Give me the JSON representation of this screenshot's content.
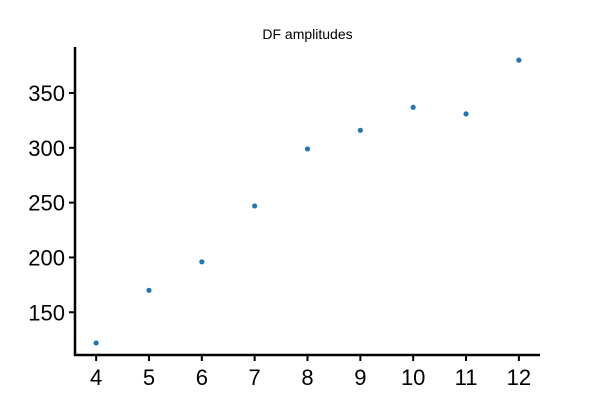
{
  "chart_data": {
    "type": "scatter",
    "title": "DF amplitudes",
    "xlabel": "",
    "ylabel": "",
    "x": [
      4,
      5,
      6,
      7,
      8,
      9,
      10,
      11,
      12
    ],
    "y": [
      122,
      170,
      196,
      247,
      299,
      316,
      337,
      331,
      380
    ],
    "xlim": [
      3.6,
      12.4
    ],
    "ylim": [
      111,
      392
    ],
    "xticks": [
      4,
      5,
      6,
      7,
      8,
      9,
      10,
      11,
      12
    ],
    "yticks": [
      150,
      200,
      250,
      300,
      350
    ],
    "grid": false,
    "spines": [
      "left",
      "bottom"
    ],
    "point_color": "#1f77b4"
  }
}
